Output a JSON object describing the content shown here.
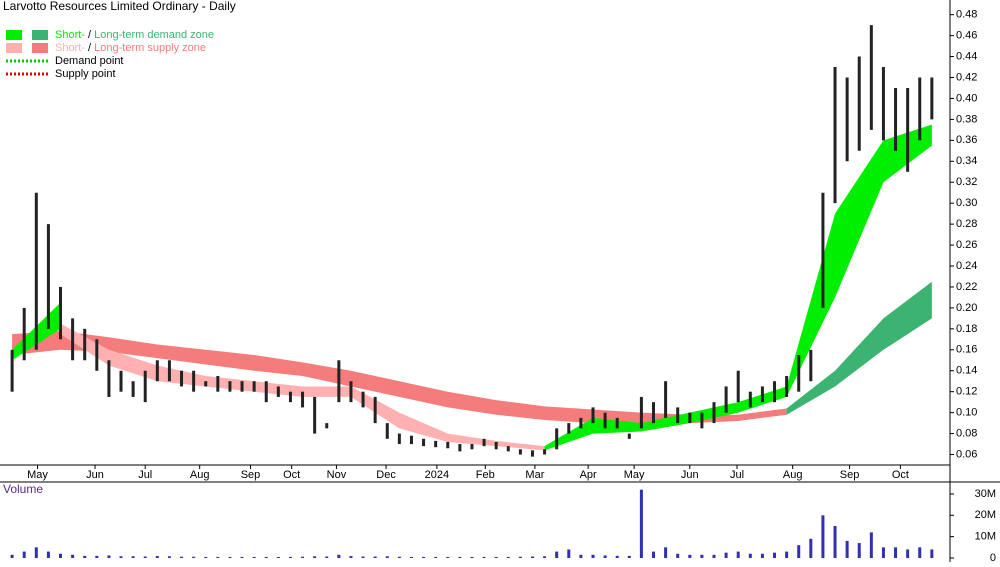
{
  "chart_data": [
    {
      "type": "hilo",
      "title": "Larvotto Resources Limited Ordinary - Daily",
      "legend": [
        {
          "parts": [
            "Short-",
            " / ",
            "Long-term demand zone"
          ],
          "colors": [
            "#00ee00",
            "#3cb371"
          ]
        },
        {
          "parts": [
            "Short-",
            " / ",
            "Long-term supply zone"
          ],
          "colors": [
            "#ffb0b0",
            "#f47c7c"
          ]
        },
        {
          "parts": [
            "Demand point"
          ],
          "colors": [
            "#00cc00"
          ]
        },
        {
          "parts": [
            "Supply point"
          ],
          "colors": [
            "#e00000"
          ]
        }
      ],
      "x": [
        0,
        1,
        2,
        3,
        4,
        5,
        6,
        7,
        8,
        9,
        10,
        11,
        12,
        13,
        14,
        15,
        16,
        17,
        18,
        19,
        20,
        21,
        22,
        23,
        24,
        25,
        26,
        27,
        28,
        29,
        30,
        31,
        32,
        33,
        34,
        35,
        36,
        37,
        38,
        39,
        40,
        41,
        42,
        43,
        44,
        45,
        46,
        47,
        48,
        49,
        50,
        51,
        52,
        53,
        54,
        55,
        56,
        57,
        58,
        59,
        60,
        61,
        62,
        63,
        64,
        65,
        66,
        67,
        68,
        69,
        70,
        71,
        72,
        73,
        74,
        75,
        76
      ],
      "high": [
        0.16,
        0.2,
        0.31,
        0.28,
        0.22,
        0.19,
        0.18,
        0.17,
        0.15,
        0.14,
        0.13,
        0.14,
        0.15,
        0.15,
        0.14,
        0.14,
        0.13,
        0.135,
        0.13,
        0.13,
        0.13,
        0.13,
        0.125,
        0.12,
        0.12,
        0.115,
        0.09,
        0.15,
        0.13,
        0.12,
        0.115,
        0.09,
        0.08,
        0.078,
        0.075,
        0.073,
        0.072,
        0.07,
        0.07,
        0.075,
        0.072,
        0.068,
        0.065,
        0.064,
        0.065,
        0.085,
        0.09,
        0.095,
        0.105,
        0.1,
        0.095,
        0.08,
        0.115,
        0.11,
        0.13,
        0.105,
        0.1,
        0.1,
        0.11,
        0.125,
        0.14,
        0.12,
        0.125,
        0.13,
        0.135,
        0.155,
        0.16,
        0.31,
        0.43,
        0.42,
        0.44,
        0.47,
        0.43,
        0.41,
        0.41,
        0.42,
        0.42
      ],
      "low": [
        0.12,
        0.15,
        0.16,
        0.18,
        0.17,
        0.15,
        0.15,
        0.14,
        0.115,
        0.12,
        0.115,
        0.11,
        0.13,
        0.13,
        0.125,
        0.12,
        0.125,
        0.12,
        0.12,
        0.12,
        0.12,
        0.11,
        0.115,
        0.11,
        0.105,
        0.08,
        0.085,
        0.11,
        0.11,
        0.105,
        0.09,
        0.075,
        0.07,
        0.07,
        0.068,
        0.067,
        0.066,
        0.063,
        0.065,
        0.068,
        0.065,
        0.063,
        0.06,
        0.058,
        0.06,
        0.065,
        0.08,
        0.085,
        0.09,
        0.085,
        0.085,
        0.075,
        0.085,
        0.09,
        0.095,
        0.09,
        0.09,
        0.085,
        0.09,
        0.1,
        0.11,
        0.105,
        0.11,
        0.11,
        0.115,
        0.12,
        0.13,
        0.2,
        0.3,
        0.34,
        0.35,
        0.37,
        0.36,
        0.35,
        0.33,
        0.36,
        0.38
      ],
      "bar_color": "#222222",
      "zone_x": [
        0,
        4,
        8,
        12,
        16,
        20,
        24,
        28,
        32,
        36,
        40,
        44,
        48,
        52,
        56,
        60,
        64,
        68,
        72,
        76
      ],
      "zones": [
        {
          "color": "#f47c7c",
          "upper": [
            0.175,
            0.178,
            0.172,
            0.165,
            0.16,
            0.155,
            0.148,
            0.14,
            0.13,
            0.12,
            0.112,
            0.106,
            0.103,
            0.1,
            0.098,
            0.098,
            0.104,
            null,
            null,
            null
          ],
          "lower": [
            0.155,
            0.16,
            0.158,
            0.152,
            0.146,
            0.14,
            0.135,
            0.125,
            0.115,
            0.105,
            0.098,
            0.093,
            0.09,
            0.09,
            0.09,
            0.092,
            0.098,
            null,
            null,
            null
          ]
        },
        {
          "color": "#3cb371",
          "upper": [
            null,
            null,
            null,
            null,
            null,
            null,
            null,
            null,
            null,
            null,
            null,
            null,
            null,
            null,
            null,
            null,
            0.104,
            0.14,
            0.19,
            0.225
          ],
          "lower": [
            null,
            null,
            null,
            null,
            null,
            null,
            null,
            null,
            null,
            null,
            null,
            null,
            null,
            null,
            null,
            null,
            0.098,
            0.125,
            0.16,
            0.19
          ]
        },
        {
          "color": "#ffb0b0",
          "upper": [
            null,
            0.185,
            0.16,
            0.145,
            0.135,
            0.13,
            0.125,
            0.125,
            0.1,
            0.08,
            0.073,
            0.068,
            null,
            null,
            null,
            null,
            null,
            null,
            null,
            null
          ],
          "lower": [
            null,
            0.175,
            0.145,
            0.13,
            0.125,
            0.12,
            0.115,
            0.115,
            0.085,
            0.072,
            0.068,
            0.064,
            null,
            null,
            null,
            null,
            null,
            null,
            null,
            null
          ]
        },
        {
          "color": "#00ee00",
          "upper": [
            0.16,
            0.205,
            null,
            null,
            null,
            null,
            null,
            null,
            null,
            null,
            null,
            0.068,
            0.095,
            0.09,
            0.1,
            0.11,
            0.125,
            0.29,
            0.36,
            0.375
          ],
          "lower": [
            0.15,
            0.18,
            null,
            null,
            null,
            null,
            null,
            null,
            null,
            null,
            null,
            0.064,
            0.08,
            0.082,
            0.09,
            0.1,
            0.115,
            0.21,
            0.32,
            0.355
          ]
        }
      ],
      "xlim": [
        -1,
        77.5
      ],
      "xticks": [
        {
          "value": 2.1,
          "label": "May"
        },
        {
          "value": 6.85,
          "label": "Jun"
        },
        {
          "value": 11,
          "label": "Jul"
        },
        {
          "value": 15.5,
          "label": "Aug"
        },
        {
          "value": 19.7,
          "label": "Sep"
        },
        {
          "value": 23.1,
          "label": "Oct"
        },
        {
          "value": 26.8,
          "label": "Nov"
        },
        {
          "value": 30.9,
          "label": "Dec"
        },
        {
          "value": 35.1,
          "label": "2024"
        },
        {
          "value": 39.1,
          "label": "Feb"
        },
        {
          "value": 43.2,
          "label": "Mar"
        },
        {
          "value": 47.6,
          "label": "Apr"
        },
        {
          "value": 51.4,
          "label": "May"
        },
        {
          "value": 56,
          "label": "Jun"
        },
        {
          "value": 59.9,
          "label": "Jul"
        },
        {
          "value": 64.5,
          "label": "Aug"
        },
        {
          "value": 69.2,
          "label": "Sep"
        },
        {
          "value": 73.4,
          "label": "Oct"
        }
      ],
      "ylim": [
        0.05,
        0.494
      ],
      "yticks": [
        0.06,
        0.08,
        {
          "value": 0.1,
          "label": "0.10"
        },
        0.12,
        0.14,
        0.16,
        0.18,
        {
          "value": 0.2,
          "label": "0.20"
        },
        0.22,
        0.24,
        0.26,
        0.28,
        {
          "value": 0.3,
          "label": "0.30"
        },
        0.32,
        0.34,
        0.36,
        0.38,
        {
          "value": 0.4,
          "label": "0.40"
        },
        0.42,
        0.44,
        0.46,
        0.48
      ]
    },
    {
      "type": "bar",
      "title": "Volume",
      "color": "#3030b0",
      "values": [
        1500000,
        3000000,
        5000000,
        3000000,
        2000000,
        1500000,
        1000000,
        1000000,
        1200000,
        800000,
        800000,
        700000,
        900000,
        800000,
        600000,
        600000,
        500000,
        500000,
        500000,
        500000,
        500000,
        500000,
        500000,
        500000,
        600000,
        800000,
        700000,
        1500000,
        900000,
        700000,
        700000,
        800000,
        600000,
        500000,
        500000,
        500000,
        500000,
        500000,
        500000,
        500000,
        500000,
        500000,
        600000,
        700000,
        800000,
        3000000,
        4000000,
        1500000,
        1500000,
        1200000,
        1000000,
        1000000,
        32000000,
        3000000,
        5000000,
        2000000,
        1500000,
        1500000,
        1500000,
        2500000,
        3000000,
        2000000,
        2000000,
        2500000,
        3000000,
        6000000,
        9000000,
        20000000,
        15000000,
        8000000,
        7000000,
        12000000,
        5000000,
        5000000,
        4000000,
        5000000,
        4000000
      ],
      "ylim": [
        0,
        35600000
      ],
      "yticks": [
        0,
        {
          "value": 10000000,
          "label": "10M"
        },
        {
          "value": 20000000,
          "label": "20M"
        },
        {
          "value": 30000000,
          "label": "30M"
        }
      ]
    }
  ]
}
